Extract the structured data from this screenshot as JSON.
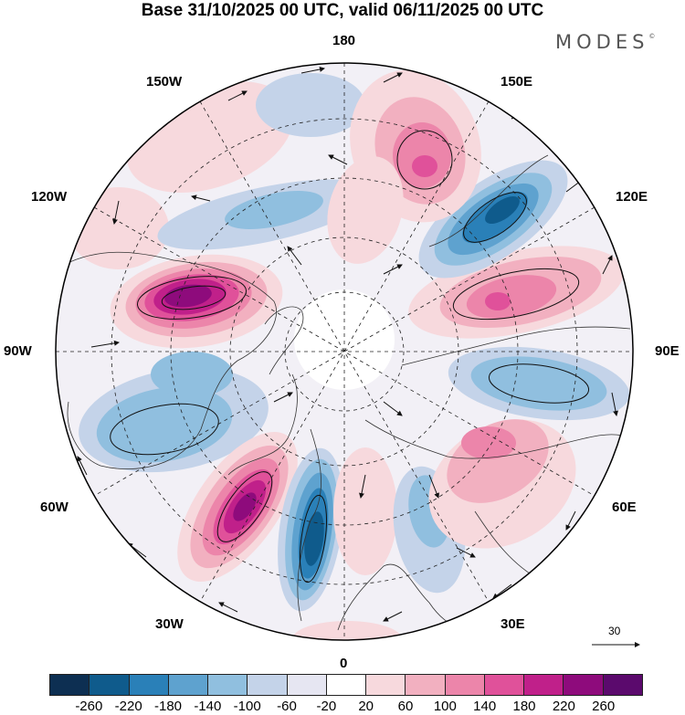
{
  "title": "Base 31/10/2025 00 UTC, valid 06/11/2025 00 UTC",
  "brand": {
    "name": "MODES",
    "mark": "©"
  },
  "longitude_labels": {
    "top": "180",
    "bottom": "0",
    "left": "90W",
    "right": "90E",
    "upper_left_1": "150W",
    "upper_left_2": "120W",
    "upper_right_1": "150E",
    "upper_right_2": "120E",
    "lower_left_1": "60W",
    "lower_left_2": "30W",
    "lower_right_1": "60E",
    "lower_right_2": "30E"
  },
  "vector_scale": {
    "label": "30"
  },
  "colorbar": {
    "colors": [
      "#0d2f52",
      "#0f5b8c",
      "#2a80b8",
      "#5ea2cf",
      "#90bfdf",
      "#c4d3e9",
      "#e6e6f2",
      "#ffffff",
      "#f7d9dd",
      "#f2b0c0",
      "#ec85aa",
      "#e0519a",
      "#c0208a",
      "#8e0b7c",
      "#5b0a6d"
    ],
    "tick_labels": [
      "-260",
      "-220",
      "-180",
      "-140",
      "-100",
      "-60",
      "-20",
      "20",
      "60",
      "100",
      "140",
      "180",
      "220",
      "260"
    ]
  }
}
